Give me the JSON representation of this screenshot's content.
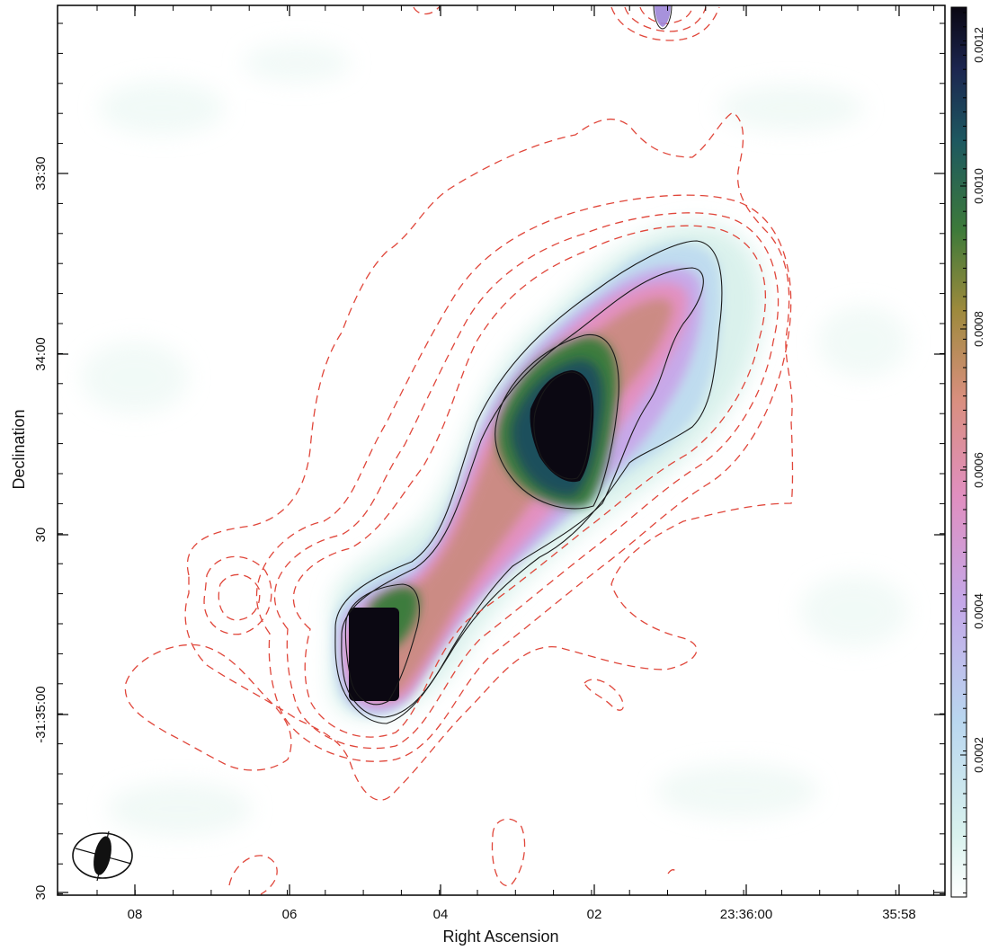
{
  "figure": {
    "x_axis_label": "Right Ascension",
    "y_axis_label": "Declination",
    "x_ticks": [
      "08",
      "06",
      "04",
      "02",
      "23:36:00",
      "35:58"
    ],
    "y_ticks": [
      "33:30",
      "34:00",
      "30",
      "-31:35:00",
      "30"
    ],
    "colorbar_ticks": [
      "0.0002",
      "0.0004",
      "0.0006",
      "0.0008",
      "0.0010",
      "0.0012"
    ],
    "colors": {
      "dashed_contour": "#e0463a",
      "solid_contour": "#1a1a1a",
      "frame": "#000000"
    }
  }
}
